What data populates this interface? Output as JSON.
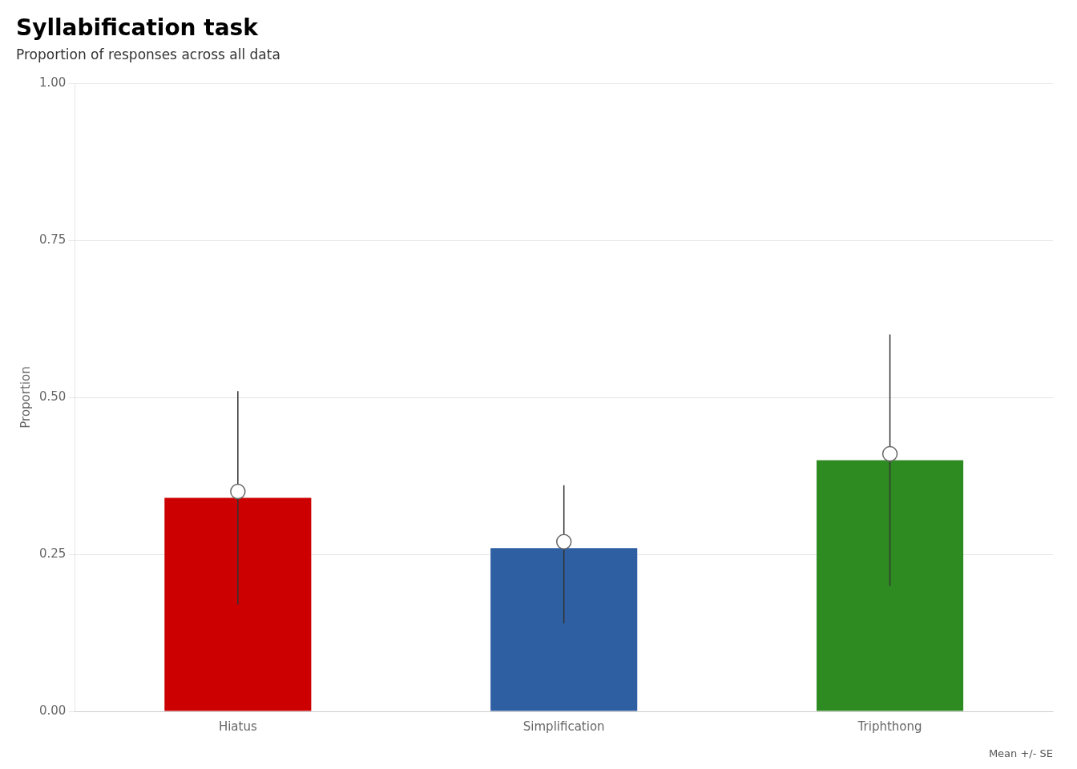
{
  "chart_data": {
    "type": "bar",
    "title": "Syllabification task",
    "subtitle": "Proportion of responses across all data",
    "ylabel": "Proportion",
    "annotation": "Mean +/- SE",
    "categories": [
      "Hiatus",
      "Simplification",
      "Triphthong"
    ],
    "values": [
      0.34,
      0.26,
      0.4
    ],
    "colors": [
      "#CC0000",
      "#2E5FA3",
      "#2E8B22"
    ],
    "means": [
      0.35,
      0.27,
      0.41
    ],
    "se_lower": [
      0.17,
      0.14,
      0.2
    ],
    "se_upper": [
      0.51,
      0.36,
      0.6
    ],
    "ylim": [
      0.0,
      1.0
    ],
    "yticks": [
      {
        "value": 0.0,
        "label": "0.00"
      },
      0.25,
      {
        "value": 0.5,
        "label": "0.50"
      },
      0.75,
      {
        "value": 1.0,
        "label": "1.00"
      }
    ],
    "grid": true
  }
}
